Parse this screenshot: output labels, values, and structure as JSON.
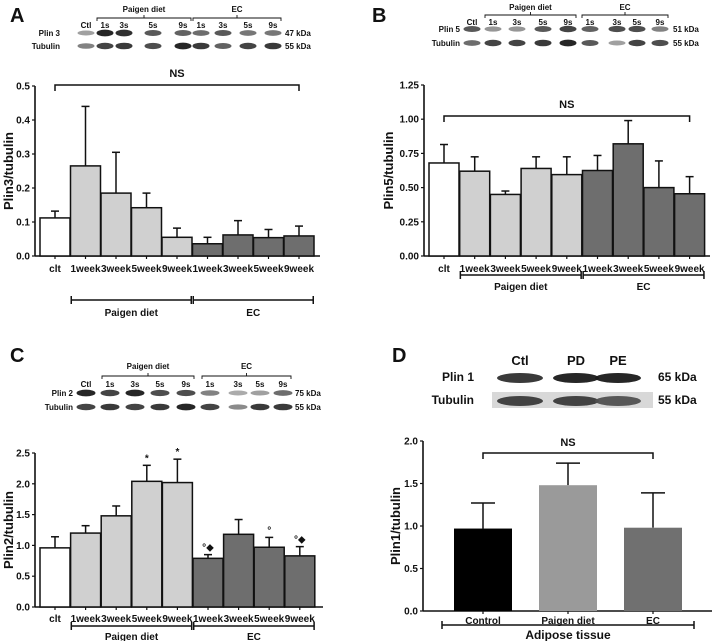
{
  "figure": {
    "colors": {
      "control": "#ffffff",
      "paigen": "#d0d0d0",
      "ec": "#6e6e6e",
      "axis": "#111111",
      "d_control": "#000000",
      "d_paigen": "#9a9a9a",
      "d_ec": "#707070"
    }
  },
  "blots": [
    {
      "panel": "A",
      "groups": [
        {
          "label": "Paigen diet"
        },
        {
          "label": "EC"
        }
      ],
      "lanes": [
        "Ctl",
        "1s",
        "3s",
        "5s",
        "9s",
        "1s",
        "3s",
        "5s",
        "9s"
      ],
      "rows": [
        {
          "protein": "Plin 3",
          "size": "47 kDa",
          "intensities": [
            0.35,
            0.95,
            0.9,
            0.7,
            0.65,
            0.6,
            0.7,
            0.55,
            0.55
          ]
        },
        {
          "protein": "Tubulin",
          "size": "55 kDa",
          "intensities": [
            0.5,
            0.8,
            0.85,
            0.75,
            0.95,
            0.85,
            0.65,
            0.8,
            0.85
          ]
        }
      ]
    },
    {
      "panel": "B",
      "groups": [
        {
          "label": "Paigen diet"
        },
        {
          "label": "EC"
        }
      ],
      "lanes": [
        "Ctl",
        "1s",
        "3s",
        "5s",
        "9s",
        "1s",
        "3s",
        "5s",
        "9s"
      ],
      "rows": [
        {
          "protein": "Plin 5",
          "size": "51 kDa",
          "intensities": [
            0.7,
            0.4,
            0.4,
            0.7,
            0.8,
            0.65,
            0.75,
            0.75,
            0.5
          ]
        },
        {
          "protein": "Tubulin",
          "size": "55 kDa",
          "intensities": [
            0.6,
            0.8,
            0.8,
            0.85,
            0.95,
            0.7,
            0.35,
            0.8,
            0.75
          ]
        }
      ]
    },
    {
      "panel": "C",
      "groups": [
        {
          "label": "Paigen diet"
        },
        {
          "label": "EC"
        }
      ],
      "lanes": [
        "Ctl",
        "1s",
        "3s",
        "5s",
        "9s",
        "1s",
        "3s",
        "5s",
        "9s"
      ],
      "rows": [
        {
          "protein": "Plin 2",
          "size": "75 kDa",
          "intensities": [
            0.95,
            0.8,
            0.95,
            0.75,
            0.75,
            0.5,
            0.3,
            0.35,
            0.6
          ]
        },
        {
          "protein": "Tubulin",
          "size": "55 kDa",
          "intensities": [
            0.8,
            0.85,
            0.8,
            0.85,
            0.95,
            0.8,
            0.45,
            0.85,
            0.85
          ]
        }
      ]
    },
    {
      "panel": "D",
      "groups": [],
      "lanes": [
        "Ctl",
        "PD",
        "PE"
      ],
      "rows": [
        {
          "protein": "Plin 1",
          "size": "65 kDa",
          "intensities": [
            0.85,
            0.95,
            0.95
          ]
        },
        {
          "protein": "Tubulin",
          "size": "55 kDa",
          "intensities": [
            0.8,
            0.8,
            0.7
          ]
        }
      ]
    }
  ],
  "chart_data": [
    {
      "panel": "A",
      "type": "bar",
      "title": "",
      "ylabel": "Plin3/tubulin",
      "xlabel": "",
      "ylim": [
        0,
        0.5
      ],
      "yticks": [
        "0.0",
        "0.1",
        "0.2",
        "0.3",
        "0.4",
        "0.5"
      ],
      "ytick_values": [
        0,
        0.1,
        0.2,
        0.3,
        0.4,
        0.5
      ],
      "grid": false,
      "categories": [
        "clt",
        "1week",
        "3week",
        "5week",
        "9week",
        "1week",
        "3week",
        "5week",
        "9week"
      ],
      "values": [
        0.112,
        0.265,
        0.185,
        0.142,
        0.055,
        0.036,
        0.062,
        0.054,
        0.059
      ],
      "errors": [
        0.02,
        0.175,
        0.12,
        0.043,
        0.027,
        0.019,
        0.042,
        0.024,
        0.029
      ],
      "groups": [
        "control",
        "paigen",
        "paigen",
        "paigen",
        "paigen",
        "ec",
        "ec",
        "ec",
        "ec"
      ],
      "annotations": [],
      "significance": {
        "label": "NS",
        "from": 0,
        "to": 8
      },
      "group_brackets": [
        {
          "label": "Paigen diet",
          "from": 1,
          "to": 4
        },
        {
          "label": "EC",
          "from": 5,
          "to": 8
        }
      ]
    },
    {
      "panel": "B",
      "type": "bar",
      "title": "",
      "ylabel": "Plin5/tubulin",
      "xlabel": "",
      "ylim": [
        0,
        1.25
      ],
      "yticks": [
        "0.00",
        "0.25",
        "0.50",
        "0.75",
        "1.00",
        "1.25"
      ],
      "ytick_values": [
        0,
        0.25,
        0.5,
        0.75,
        1.0,
        1.25
      ],
      "grid": false,
      "categories": [
        "clt",
        "1week",
        "3week",
        "5week",
        "9week",
        "1week",
        "3week",
        "5week",
        "9week"
      ],
      "values": [
        0.68,
        0.62,
        0.45,
        0.64,
        0.595,
        0.625,
        0.82,
        0.5,
        0.455
      ],
      "errors": [
        0.135,
        0.105,
        0.025,
        0.085,
        0.13,
        0.11,
        0.17,
        0.195,
        0.125
      ],
      "groups": [
        "control",
        "paigen",
        "paigen",
        "paigen",
        "paigen",
        "ec",
        "ec",
        "ec",
        "ec"
      ],
      "annotations": [],
      "significance": {
        "label": "NS",
        "from": 0,
        "to": 8
      },
      "group_brackets": [
        {
          "label": "Paigen diet",
          "from": 1,
          "to": 4
        },
        {
          "label": "EC",
          "from": 5,
          "to": 8
        }
      ]
    },
    {
      "panel": "C",
      "type": "bar",
      "title": "",
      "ylabel": "Plin2/tubulin",
      "xlabel": "",
      "ylim": [
        0,
        2.5
      ],
      "yticks": [
        "0.0",
        "0.5",
        "1.0",
        "1.5",
        "2.0",
        "2.5"
      ],
      "ytick_values": [
        0,
        0.5,
        1.0,
        1.5,
        2.0,
        2.5
      ],
      "grid": false,
      "categories": [
        "clt",
        "1week",
        "3week",
        "5week",
        "9week",
        "1week",
        "3week",
        "5week",
        "9week"
      ],
      "values": [
        0.96,
        1.2,
        1.48,
        2.04,
        2.02,
        0.79,
        1.18,
        0.97,
        0.83
      ],
      "errors": [
        0.18,
        0.12,
        0.16,
        0.26,
        0.38,
        0.06,
        0.24,
        0.16,
        0.15
      ],
      "groups": [
        "control",
        "paigen",
        "paigen",
        "paigen",
        "paigen",
        "ec",
        "ec",
        "ec",
        "ec"
      ],
      "annotations": [
        "",
        "",
        "",
        "*",
        "*",
        "°◆",
        "",
        "°",
        "°◆"
      ],
      "significance": null,
      "group_brackets": [
        {
          "label": "Paigen diet",
          "from": 1,
          "to": 4
        },
        {
          "label": "EC",
          "from": 5,
          "to": 8
        }
      ]
    },
    {
      "panel": "D",
      "type": "bar",
      "title": "",
      "ylabel": "Plin1/tubulin",
      "xlabel": "Adipose tissue",
      "ylim": [
        0,
        2.0
      ],
      "yticks": [
        "0.0",
        "0.5",
        "1.0",
        "1.5",
        "2.0"
      ],
      "ytick_values": [
        0,
        0.5,
        1.0,
        1.5,
        2.0
      ],
      "grid": false,
      "categories": [
        "Control",
        "Paigen diet",
        "EC"
      ],
      "values": [
        0.97,
        1.48,
        0.98
      ],
      "errors": [
        0.3,
        0.26,
        0.41
      ],
      "groups": [
        "d_control",
        "d_paigen",
        "d_ec"
      ],
      "annotations": [],
      "significance": {
        "label": "NS",
        "from": 0,
        "to": 2
      },
      "group_brackets": [
        {
          "label": "Adipose tissue",
          "from": 0,
          "to": 2
        }
      ]
    }
  ]
}
